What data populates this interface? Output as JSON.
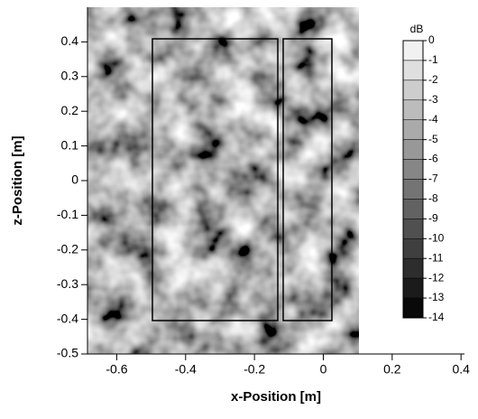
{
  "chart_data": {
    "type": "heatmap",
    "xlabel": "x-Position [m]",
    "ylabel": "z-Position [m]",
    "xlim": [
      -0.685,
      0.41
    ],
    "xticks": [
      -0.6,
      -0.4,
      -0.2,
      0,
      0.2,
      0.4
    ],
    "ylim": [
      -0.5,
      0.5
    ],
    "yticks": [
      -0.5,
      -0.4,
      -0.3,
      -0.2,
      -0.1,
      0,
      0.1,
      0.2,
      0.3,
      0.4
    ],
    "colorbar": {
      "label": "dB",
      "lim": [
        -14,
        0
      ],
      "ticks": [
        0,
        -1,
        -2,
        -3,
        -4,
        -5,
        -6,
        -7,
        -8,
        -9,
        -10,
        -11,
        -12,
        -13,
        -14
      ]
    }
  }
}
